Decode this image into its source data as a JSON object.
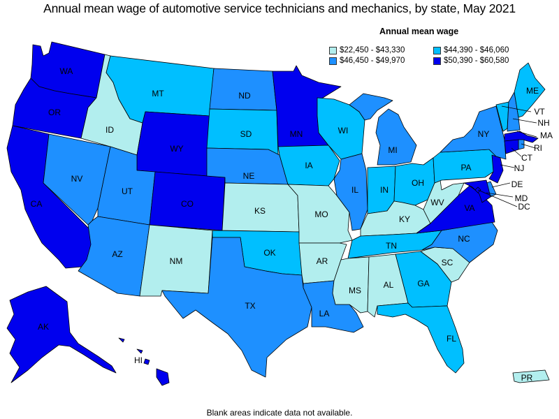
{
  "title": "Annual mean wage of automotive service technicians and mechanics, by state, May 2021",
  "legend": {
    "title": "Annual mean wage",
    "items": [
      {
        "label": "$22,450 - $43,330",
        "color": "#b2eeee"
      },
      {
        "label": "$44,390 - $46,060",
        "color": "#00bfff"
      },
      {
        "label": "$46,450 - $49,970",
        "color": "#1e90ff"
      },
      {
        "label": "$50,390 - $60,580",
        "color": "#0000ee"
      }
    ]
  },
  "footnote": "Blank areas indicate data not available.",
  "states": {
    "WA": "$50,390 - $60,580",
    "OR": "$50,390 - $60,580",
    "CA": "$50,390 - $60,580",
    "NV": "$46,450 - $49,970",
    "ID": "$22,450 - $43,330",
    "MT": "$44,390 - $46,060",
    "WY": "$50,390 - $60,580",
    "UT": "$46,450 - $49,970",
    "AZ": "$46,450 - $49,970",
    "CO": "$50,390 - $60,580",
    "NM": "$22,450 - $43,330",
    "ND": "$46,450 - $49,970",
    "SD": "$44,390 - $46,060",
    "NE": "$46,450 - $49,970",
    "KS": "$22,450 - $43,330",
    "OK": "$44,390 - $46,060",
    "TX": "$46,450 - $49,970",
    "MN": "$50,390 - $60,580",
    "IA": "$44,390 - $46,060",
    "MO": "$22,450 - $43,330",
    "AR": "$22,450 - $43,330",
    "LA": "$46,450 - $49,970",
    "WI": "$44,390 - $46,060",
    "IL": "$46,450 - $49,970",
    "MI": "$46,450 - $49,970",
    "IN": "$44,390 - $46,060",
    "OH": "$44,390 - $46,060",
    "KY": "$22,450 - $43,330",
    "TN": "$44,390 - $46,060",
    "MS": "$22,450 - $43,330",
    "AL": "$22,450 - $43,330",
    "GA": "$44,390 - $46,060",
    "FL": "$44,390 - $46,060",
    "SC": "$22,450 - $43,330",
    "NC": "$46,450 - $49,970",
    "VA": "$50,390 - $60,580",
    "WV": "$22,450 - $43,330",
    "PA": "$44,390 - $46,060",
    "NY": "$46,450 - $49,970",
    "VT": "$44,390 - $46,060",
    "NH": "$46,450 - $49,970",
    "ME": "$44,390 - $46,060",
    "MA": "$50,390 - $60,580",
    "RI": "$46,450 - $49,970",
    "CT": "$50,390 - $60,580",
    "NJ": "$50,390 - $60,580",
    "DE": "$46,450 - $49,970",
    "MD": "$50,390 - $60,580",
    "DC": "$50,390 - $60,580",
    "AK": "$50,390 - $60,580",
    "HI": "$50,390 - $60,580",
    "PR": "$22,450 - $43,330"
  }
}
